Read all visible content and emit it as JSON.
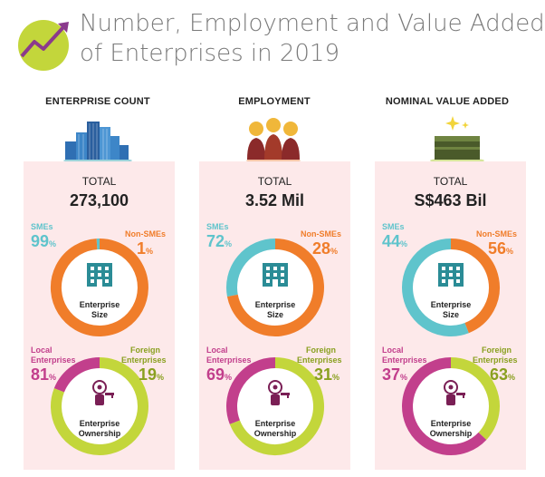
{
  "title": {
    "line1": "Number, Employment and Value Added",
    "line2": "of Enterprises in 2019"
  },
  "colors": {
    "teal": "#5fc4cc",
    "orange": "#f07d2a",
    "magenta": "#c23f8c",
    "lime": "#c3d63b",
    "card": "#fde9ea"
  },
  "columns": [
    {
      "heading": "ENTERPRISE COUNT",
      "total_label": "TOTAL",
      "total_value": "273,100",
      "size": {
        "sme_label": "SMEs",
        "sme_pct": "99",
        "nonsme_label": "Non-SMEs",
        "nonsme_pct": "1",
        "center_l1": "Enterprise",
        "center_l2": "Size",
        "sme_frac": 0.99
      },
      "ownership": {
        "local_label1": "Local",
        "local_label2": "Enterprises",
        "local_pct": "81",
        "foreign_label1": "Foreign",
        "foreign_label2": "Enterprises",
        "foreign_pct": "19",
        "center_l1": "Enterprise",
        "center_l2": "Ownership",
        "local_frac": 0.81
      }
    },
    {
      "heading": "EMPLOYMENT",
      "total_label": "TOTAL",
      "total_value": "3.52 Mil",
      "size": {
        "sme_label": "SMEs",
        "sme_pct": "72",
        "nonsme_label": "Non-SMEs",
        "nonsme_pct": "28",
        "center_l1": "Enterprise",
        "center_l2": "Size",
        "sme_frac": 0.72
      },
      "ownership": {
        "local_label1": "Local",
        "local_label2": "Enterprises",
        "local_pct": "69",
        "foreign_label1": "Foreign",
        "foreign_label2": "Enterprises",
        "foreign_pct": "31",
        "center_l1": "Enterprise",
        "center_l2": "Ownership",
        "local_frac": 0.69
      }
    },
    {
      "heading": "NOMINAL VALUE ADDED",
      "total_label": "TOTAL",
      "total_value": "S$463 Bil",
      "size": {
        "sme_label": "SMEs",
        "sme_pct": "44",
        "nonsme_label": "Non-SMEs",
        "nonsme_pct": "56",
        "center_l1": "Enterprise",
        "center_l2": "Size",
        "sme_frac": 0.44
      },
      "ownership": {
        "local_label1": "Local",
        "local_label2": "Enterprises",
        "local_pct": "37",
        "foreign_label1": "Foreign",
        "foreign_label2": "Enterprises",
        "foreign_pct": "63",
        "center_l1": "Enterprise",
        "center_l2": "Ownership",
        "local_frac": 0.37
      }
    }
  ],
  "pct_symbol": "%"
}
